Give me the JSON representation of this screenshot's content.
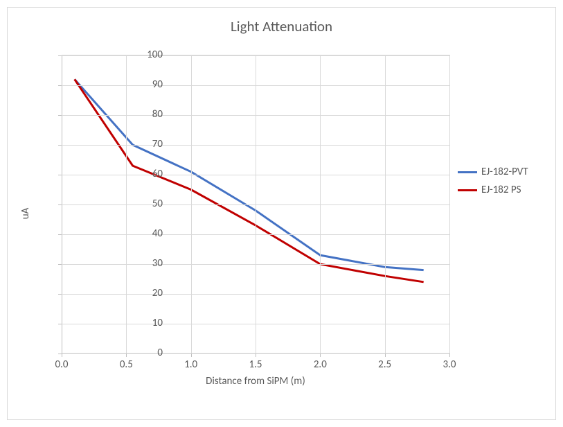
{
  "chart": {
    "type": "line",
    "title": "Light Attenuation",
    "title_fontsize": 21,
    "title_color": "#595959",
    "background_color": "#ffffff",
    "plot_border_color": "#d9d9d9",
    "grid_color": "#d9d9d9",
    "axis_color": "#bfbfbf",
    "label_color": "#595959",
    "label_fontsize": 15,
    "xlabel": "Distance from SiPM (m)",
    "ylabel": "uA",
    "xlim": [
      0.0,
      3.0
    ],
    "ylim": [
      0,
      100
    ],
    "xtick_step": 0.5,
    "ytick_step": 10,
    "xticks": [
      "0.0",
      "0.5",
      "1.0",
      "1.5",
      "2.0",
      "2.5",
      "3.0"
    ],
    "yticks": [
      "0",
      "10",
      "20",
      "30",
      "40",
      "50",
      "60",
      "70",
      "80",
      "90",
      "100"
    ],
    "line_width": 3,
    "series": [
      {
        "name": "EJ-182-PVT",
        "color": "#4472c4",
        "x": [
          0.1,
          0.55,
          1.0,
          1.5,
          2.0,
          2.5,
          2.8
        ],
        "y": [
          92,
          70,
          61,
          48,
          33,
          29,
          28
        ]
      },
      {
        "name": "EJ-182 PS",
        "color": "#c00000",
        "x": [
          0.1,
          0.55,
          1.0,
          1.5,
          2.0,
          2.5,
          2.8
        ],
        "y": [
          92,
          63,
          55,
          43,
          30,
          26,
          24
        ]
      }
    ],
    "legend": {
      "position": "right",
      "items": [
        "EJ-182-PVT",
        "EJ-182 PS"
      ]
    }
  }
}
